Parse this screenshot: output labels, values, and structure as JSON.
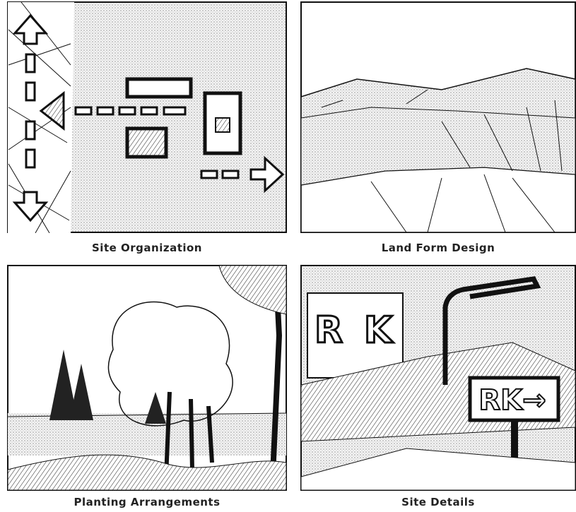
{
  "panels": [
    {
      "caption": "Site Organization"
    },
    {
      "caption": "Land Form Design"
    },
    {
      "caption": "Planting Arrangements"
    },
    {
      "caption": "Site Details"
    }
  ]
}
